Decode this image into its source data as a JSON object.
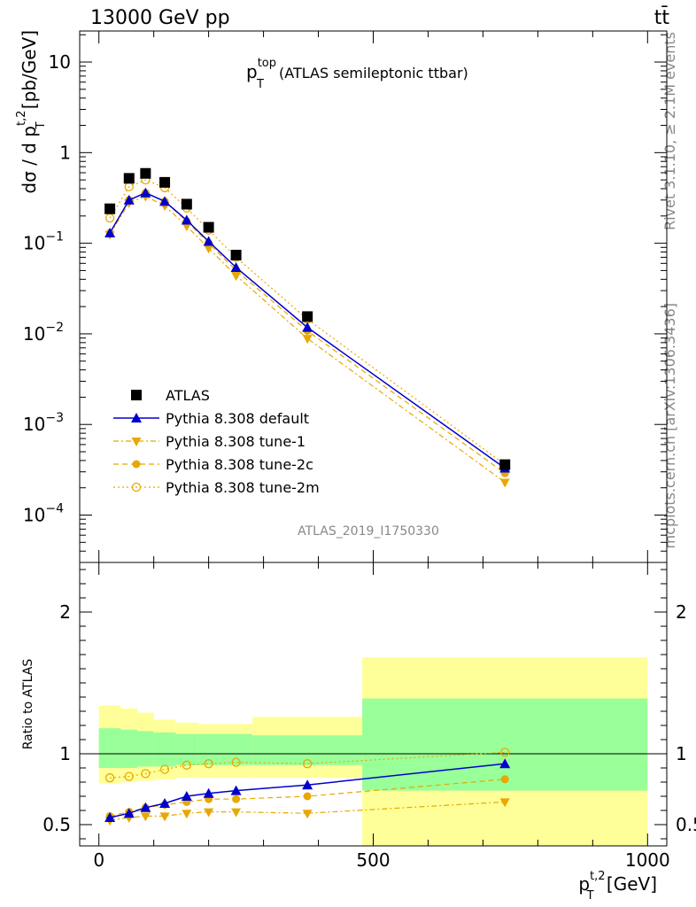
{
  "header": {
    "energy": "13000 GeV pp",
    "process": "tt̄"
  },
  "side": {
    "rivet": "Rivet 3.1.10, ≥ 2.1M events",
    "site": "mcplots.cern.ch [arXiv:1306.3436]"
  },
  "panel_title": {
    "main": "p",
    "sup": "top",
    "sub": "T",
    "rest": " (ATLAS semileptonic ttbar)"
  },
  "analysis_id": "ATLAS_2019_I1750330",
  "ylabel_main": {
    "pre": "dσ / d p",
    "sup": "t,2",
    "sub": "T",
    "post": " [pb/GeV]"
  },
  "ylabel_ratio": "Ratio to ATLAS",
  "xlabel": {
    "pre": "p",
    "sup": "t,2",
    "sub": "T",
    "post": " [GeV]"
  },
  "colors": {
    "atlas": "#000000",
    "default": "#0000cc",
    "tunes": "#e8a800",
    "band_inner": "#99ff99",
    "band_outer": "#ffff99"
  },
  "chart_data": [
    {
      "type": "scatter",
      "yscale": "log",
      "xlim": [
        -35,
        1035
      ],
      "ylim": [
        3e-05,
        22
      ],
      "x_ticks": [
        0,
        500,
        1000
      ],
      "y_ticks": [
        {
          "value": 0.0001,
          "base": "10",
          "exp": "−4"
        },
        {
          "value": 0.001,
          "base": "10",
          "exp": "−3"
        },
        {
          "value": 0.01,
          "base": "10",
          "exp": "−2"
        },
        {
          "value": 0.1,
          "base": "10",
          "exp": "−1"
        },
        {
          "value": 1,
          "base": "1",
          "exp": ""
        },
        {
          "value": 10,
          "base": "10",
          "exp": ""
        }
      ],
      "x": [
        20,
        55,
        85,
        120,
        160,
        200,
        250,
        380,
        740
      ],
      "legend_position": "lower-left",
      "series": [
        {
          "name": "ATLAS",
          "marker": "square",
          "line": "none",
          "values": [
            0.24,
            0.52,
            0.59,
            0.47,
            0.27,
            0.15,
            0.074,
            0.0155,
            0.00036
          ]
        },
        {
          "name": "Pythia 8.308 default",
          "marker": "triangle-up",
          "line": "solid",
          "values": [
            0.13,
            0.3,
            0.36,
            0.29,
            0.18,
            0.105,
            0.054,
            0.0118,
            0.00033
          ]
        },
        {
          "name": "Pythia 8.308 tune-1",
          "marker": "triangle-down",
          "line": "dash-dot",
          "values": [
            0.125,
            0.28,
            0.33,
            0.26,
            0.155,
            0.088,
            0.044,
            0.0089,
            0.00023
          ]
        },
        {
          "name": "Pythia 8.308 tune-2c",
          "marker": "circle",
          "line": "dashed",
          "values": [
            0.13,
            0.3,
            0.36,
            0.29,
            0.175,
            0.1,
            0.05,
            0.0108,
            0.00029
          ]
        },
        {
          "name": "Pythia 8.308 tune-2m",
          "marker": "open-circle",
          "line": "dotted",
          "values": [
            0.19,
            0.42,
            0.5,
            0.41,
            0.245,
            0.14,
            0.07,
            0.0145,
            0.00036
          ]
        }
      ]
    },
    {
      "type": "scatter",
      "xlim": [
        -35,
        1035
      ],
      "ylim": [
        0.35,
        2.35
      ],
      "x_ticks": [
        0,
        500,
        1000
      ],
      "y_ticks": [
        0.5,
        1,
        2
      ],
      "reference_line": 1,
      "x": [
        20,
        55,
        85,
        120,
        160,
        200,
        250,
        380,
        740
      ],
      "bins": [
        {
          "lo": 0,
          "hi": 40,
          "inner": [
            0.9,
            1.18
          ],
          "outer": [
            0.79,
            1.34
          ]
        },
        {
          "lo": 40,
          "hi": 70,
          "inner": [
            0.9,
            1.17
          ],
          "outer": [
            0.8,
            1.32
          ]
        },
        {
          "lo": 70,
          "hi": 100,
          "inner": [
            0.91,
            1.16
          ],
          "outer": [
            0.81,
            1.29
          ]
        },
        {
          "lo": 100,
          "hi": 140,
          "inner": [
            0.91,
            1.15
          ],
          "outer": [
            0.82,
            1.24
          ]
        },
        {
          "lo": 140,
          "hi": 180,
          "inner": [
            0.92,
            1.14
          ],
          "outer": [
            0.83,
            1.22
          ]
        },
        {
          "lo": 180,
          "hi": 220,
          "inner": [
            0.92,
            1.14
          ],
          "outer": [
            0.83,
            1.21
          ]
        },
        {
          "lo": 220,
          "hi": 280,
          "inner": [
            0.92,
            1.14
          ],
          "outer": [
            0.83,
            1.21
          ]
        },
        {
          "lo": 280,
          "hi": 480,
          "inner": [
            0.92,
            1.13
          ],
          "outer": [
            0.83,
            1.26
          ]
        },
        {
          "lo": 480,
          "hi": 1000,
          "inner": [
            0.74,
            1.39
          ],
          "outer": [
            0.35,
            1.68
          ]
        }
      ],
      "series": [
        {
          "name": "Pythia 8.308 default",
          "marker": "triangle-up",
          "line": "solid",
          "values": [
            0.55,
            0.58,
            0.62,
            0.65,
            0.7,
            0.72,
            0.74,
            0.78,
            0.93
          ]
        },
        {
          "name": "Pythia 8.308 tune-1",
          "marker": "triangle-down",
          "line": "dash-dot",
          "values": [
            0.53,
            0.55,
            0.56,
            0.56,
            0.58,
            0.59,
            0.59,
            0.58,
            0.66
          ]
        },
        {
          "name": "Pythia 8.308 tune-2c",
          "marker": "circle",
          "line": "dashed",
          "values": [
            0.56,
            0.59,
            0.62,
            0.64,
            0.66,
            0.68,
            0.68,
            0.7,
            0.82
          ]
        },
        {
          "name": "Pythia 8.308 tune-2m",
          "marker": "open-circle",
          "line": "dotted",
          "values": [
            0.83,
            0.84,
            0.86,
            0.89,
            0.92,
            0.93,
            0.94,
            0.93,
            1.01
          ]
        }
      ]
    }
  ]
}
